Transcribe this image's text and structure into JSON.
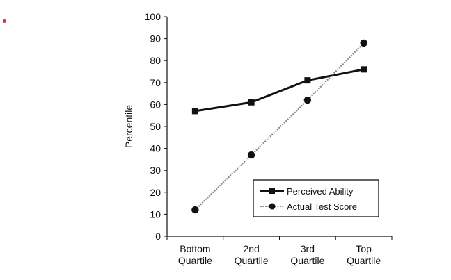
{
  "chart_data": {
    "type": "line",
    "title": "",
    "xlabel": "",
    "ylabel": "Percentile",
    "ylim": [
      0,
      100
    ],
    "yticks": [
      0,
      10,
      20,
      30,
      40,
      50,
      60,
      70,
      80,
      90,
      100
    ],
    "categories": [
      [
        "Bottom",
        "Quartile"
      ],
      [
        "2nd",
        "Quartile"
      ],
      [
        "3rd",
        "Quartile"
      ],
      [
        "Top",
        "Quartile"
      ]
    ],
    "series": [
      {
        "name": "Perceived Ability",
        "values": [
          57,
          61,
          71,
          76
        ],
        "marker": "square",
        "style": "solid-thick",
        "color": "#111111"
      },
      {
        "name": "Actual Test Score",
        "values": [
          12,
          37,
          62,
          88
        ],
        "marker": "circle",
        "style": "dotted",
        "color": "#111111"
      }
    ],
    "grid": false,
    "legend": "bottom-right",
    "accent_dot_color": "#e0303a"
  }
}
